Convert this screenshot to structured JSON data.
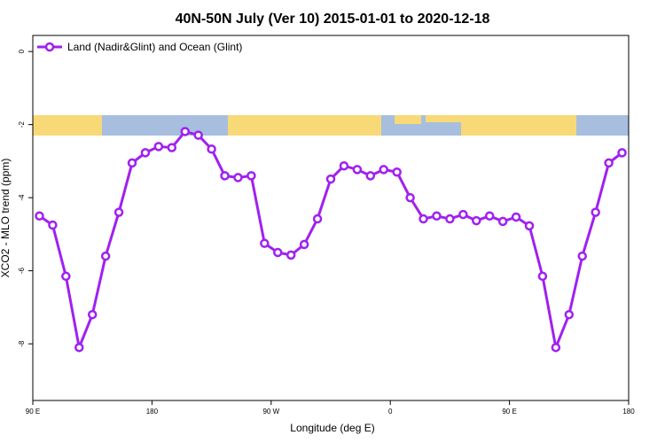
{
  "chart_data": {
    "type": "line",
    "title": "40N-50N July (Ver 10)   2015-01-01 to 2020-12-18",
    "xlabel": "Longitude (deg E)",
    "ylabel": "XCO2 - MLO trend (ppm)",
    "x": [
      95,
      105,
      115,
      125,
      135,
      145,
      155,
      165,
      175,
      185,
      195,
      205,
      215,
      225,
      235,
      245,
      255,
      265,
      275,
      285,
      295,
      305,
      315,
      325,
      335,
      345,
      355,
      365,
      375,
      385,
      395,
      405,
      415,
      425,
      435,
      445,
      455,
      465,
      475,
      485,
      495,
      505,
      515,
      525,
      535
    ],
    "series": [
      {
        "name": "Land (Nadir&Glint) and Ocean (Glint)",
        "color": "#a020f0",
        "values": [
          -4.5,
          -4.75,
          -6.15,
          -8.1,
          -7.2,
          -5.6,
          -4.4,
          -3.05,
          -2.77,
          -2.6,
          -2.63,
          -2.19,
          -2.29,
          -2.67,
          -3.4,
          -3.45,
          -3.4,
          -5.25,
          -5.5,
          -5.57,
          -5.28,
          -4.58,
          -3.49,
          -3.13,
          -3.23,
          -3.4,
          -3.23,
          -3.3,
          -4.0,
          -4.58,
          -4.5,
          -4.58,
          -4.46,
          -4.63,
          -4.5,
          -4.65,
          -4.53,
          -4.77,
          -6.15,
          -8.1,
          -7.2,
          -5.6,
          -4.4,
          -3.05,
          -2.77
        ]
      }
    ],
    "xlim": [
      90,
      540
    ],
    "xticks": [
      {
        "value": 90,
        "label": "90 E"
      },
      {
        "value": 180,
        "label": "180"
      },
      {
        "value": 270,
        "label": "90 W"
      },
      {
        "value": 360,
        "label": "0"
      },
      {
        "value": 450,
        "label": "90 E"
      },
      {
        "value": 540,
        "label": "180"
      }
    ],
    "ylim": [
      -9.55,
      0.44
    ],
    "yticks": [
      0,
      -2,
      -4,
      -6,
      -8
    ],
    "legend": "top-left"
  }
}
